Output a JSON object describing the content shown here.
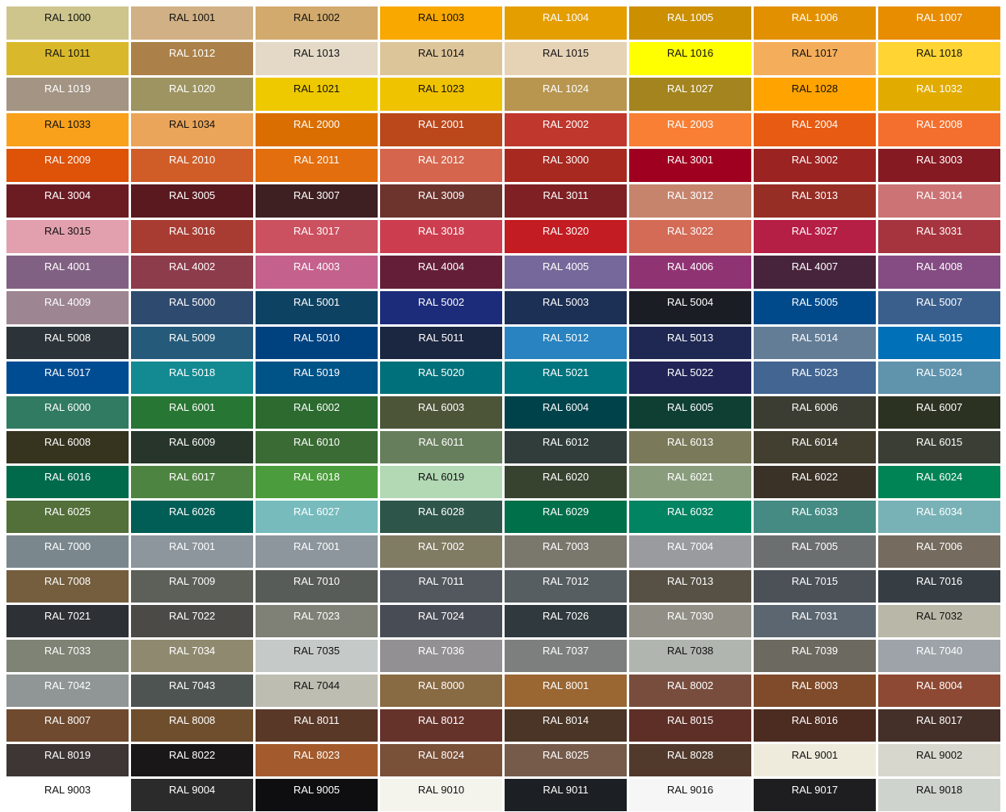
{
  "rows": [
    [
      {
        "label": "RAL 1000",
        "color": "#CDC58C",
        "text_color": "#111"
      },
      {
        "label": "RAL 1001",
        "color": "#D0B084",
        "text_color": "#111"
      },
      {
        "label": "RAL 1002",
        "color": "#D2AA6D",
        "text_color": "#111"
      },
      {
        "label": "RAL 1003",
        "color": "#F9A800",
        "text_color": "#111"
      },
      {
        "label": "RAL 1004",
        "color": "#E49E00",
        "text_color": "#fff"
      },
      {
        "label": "RAL 1005",
        "color": "#CB8F00",
        "text_color": "#fff"
      },
      {
        "label": "RAL 1006",
        "color": "#E29000",
        "text_color": "#fff"
      },
      {
        "label": "RAL 1007",
        "color": "#E88C00",
        "text_color": "#fff"
      }
    ],
    [
      {
        "label": "RAL 1011",
        "color": "#D9B92B",
        "text_color": "#111"
      },
      {
        "label": "RAL 1012",
        "color": "#AB8149",
        "text_color": "#fff"
      },
      {
        "label": "RAL 1013",
        "color": "#E3D9C6",
        "text_color": "#111"
      },
      {
        "label": "RAL 1014",
        "color": "#DDC59A",
        "text_color": "#111"
      },
      {
        "label": "RAL 1015",
        "color": "#E6D2B5",
        "text_color": "#111"
      },
      {
        "label": "RAL 1016",
        "color": "#FFFF00",
        "text_color": "#111"
      },
      {
        "label": "RAL 1017",
        "color": "#F4AE5B",
        "text_color": "#111"
      },
      {
        "label": "RAL 1018",
        "color": "#FFD433",
        "text_color": "#111"
      }
    ],
    [
      {
        "label": "RAL 1019",
        "color": "#A39483",
        "text_color": "#fff"
      },
      {
        "label": "RAL 1020",
        "color": "#9D9461",
        "text_color": "#fff"
      },
      {
        "label": "RAL 1021",
        "color": "#EEC900",
        "text_color": "#111"
      },
      {
        "label": "RAL 1023",
        "color": "#F0C300",
        "text_color": "#111"
      },
      {
        "label": "RAL 1024",
        "color": "#B89650",
        "text_color": "#fff"
      },
      {
        "label": "RAL 1027",
        "color": "#A4841F",
        "text_color": "#fff"
      },
      {
        "label": "RAL 1028",
        "color": "#FFA300",
        "text_color": "#111"
      },
      {
        "label": "RAL 1032",
        "color": "#E2AB00",
        "text_color": "#fff"
      }
    ],
    [
      {
        "label": "RAL 1033",
        "color": "#F9A11B",
        "text_color": "#111"
      },
      {
        "label": "RAL 1034",
        "color": "#EBA55A",
        "text_color": "#111"
      },
      {
        "label": "RAL 2000",
        "color": "#DA6E00",
        "text_color": "#fff"
      },
      {
        "label": "RAL 2001",
        "color": "#BA481B",
        "text_color": "#fff"
      },
      {
        "label": "RAL 2002",
        "color": "#C0372E",
        "text_color": "#fff"
      },
      {
        "label": "RAL 2003",
        "color": "#F87F33",
        "text_color": "#fff"
      },
      {
        "label": "RAL 2004",
        "color": "#E75B12",
        "text_color": "#fff"
      },
      {
        "label": "RAL 2008",
        "color": "#F46F2D",
        "text_color": "#fff"
      }
    ],
    [
      {
        "label": "RAL 2009",
        "color": "#DE5307",
        "text_color": "#fff"
      },
      {
        "label": "RAL 2010",
        "color": "#D05D28",
        "text_color": "#fff"
      },
      {
        "label": "RAL 2011",
        "color": "#E26E0E",
        "text_color": "#fff"
      },
      {
        "label": "RAL 2012",
        "color": "#D5654D",
        "text_color": "#fff"
      },
      {
        "label": "RAL 3000",
        "color": "#A72920",
        "text_color": "#fff"
      },
      {
        "label": "RAL 3001",
        "color": "#A00020",
        "text_color": "#fff"
      },
      {
        "label": "RAL 3002",
        "color": "#9B2322",
        "text_color": "#fff"
      },
      {
        "label": "RAL 3003",
        "color": "#861A22",
        "text_color": "#fff"
      }
    ],
    [
      {
        "label": "RAL 3004",
        "color": "#6B1C23",
        "text_color": "#fff"
      },
      {
        "label": "RAL 3005",
        "color": "#59191F",
        "text_color": "#fff"
      },
      {
        "label": "RAL 3007",
        "color": "#3E2022",
        "text_color": "#fff"
      },
      {
        "label": "RAL 3009",
        "color": "#6D342D",
        "text_color": "#fff"
      },
      {
        "label": "RAL 3011",
        "color": "#7E2024",
        "text_color": "#fff"
      },
      {
        "label": "RAL 3012",
        "color": "#C6846D",
        "text_color": "#fff"
      },
      {
        "label": "RAL 3013",
        "color": "#972E25",
        "text_color": "#fff"
      },
      {
        "label": "RAL 3014",
        "color": "#CB7375",
        "text_color": "#fff"
      }
    ],
    [
      {
        "label": "RAL 3015",
        "color": "#E29FAE",
        "text_color": "#111"
      },
      {
        "label": "RAL 3016",
        "color": "#A83C32",
        "text_color": "#fff"
      },
      {
        "label": "RAL 3017",
        "color": "#CB5160",
        "text_color": "#fff"
      },
      {
        "label": "RAL 3018",
        "color": "#CC3E4F",
        "text_color": "#fff"
      },
      {
        "label": "RAL 3020",
        "color": "#C31C22",
        "text_color": "#fff"
      },
      {
        "label": "RAL 3022",
        "color": "#D36B56",
        "text_color": "#fff"
      },
      {
        "label": "RAL 3027",
        "color": "#B51E45",
        "text_color": "#fff"
      },
      {
        "label": "RAL 3031",
        "color": "#A6343E",
        "text_color": "#fff"
      }
    ],
    [
      {
        "label": "RAL 4001",
        "color": "#816183",
        "text_color": "#fff"
      },
      {
        "label": "RAL 4002",
        "color": "#8D3C4B",
        "text_color": "#fff"
      },
      {
        "label": "RAL 4003",
        "color": "#C4618C",
        "text_color": "#fff"
      },
      {
        "label": "RAL 4004",
        "color": "#651E38",
        "text_color": "#fff"
      },
      {
        "label": "RAL 4005",
        "color": "#76689A",
        "text_color": "#fff"
      },
      {
        "label": "RAL 4006",
        "color": "#903373",
        "text_color": "#fff"
      },
      {
        "label": "RAL 4007",
        "color": "#47243C",
        "text_color": "#fff"
      },
      {
        "label": "RAL 4008",
        "color": "#844C82",
        "text_color": "#fff"
      }
    ],
    [
      {
        "label": "RAL 4009",
        "color": "#9D8692",
        "text_color": "#fff"
      },
      {
        "label": "RAL 5000",
        "color": "#2F4A6F",
        "text_color": "#fff"
      },
      {
        "label": "RAL 5001",
        "color": "#0E4263",
        "text_color": "#fff"
      },
      {
        "label": "RAL 5002",
        "color": "#1C2B7A",
        "text_color": "#fff"
      },
      {
        "label": "RAL 5003",
        "color": "#1C2F55",
        "text_color": "#fff"
      },
      {
        "label": "RAL 5004",
        "color": "#1A1D24",
        "text_color": "#fff"
      },
      {
        "label": "RAL 5005",
        "color": "#004A8C",
        "text_color": "#fff"
      },
      {
        "label": "RAL 5007",
        "color": "#3B5F8D",
        "text_color": "#fff"
      }
    ],
    [
      {
        "label": "RAL 5008",
        "color": "#2C3439",
        "text_color": "#fff"
      },
      {
        "label": "RAL 5009",
        "color": "#255A7A",
        "text_color": "#fff"
      },
      {
        "label": "RAL 5010",
        "color": "#00427F",
        "text_color": "#fff"
      },
      {
        "label": "RAL 5011",
        "color": "#1B2640",
        "text_color": "#fff"
      },
      {
        "label": "RAL 5012",
        "color": "#2883C0",
        "text_color": "#fff"
      },
      {
        "label": "RAL 5013",
        "color": "#1E2852",
        "text_color": "#fff"
      },
      {
        "label": "RAL 5014",
        "color": "#637D96",
        "text_color": "#fff"
      },
      {
        "label": "RAL 5015",
        "color": "#0070B8",
        "text_color": "#fff"
      }
    ],
    [
      {
        "label": "RAL 5017",
        "color": "#004C93",
        "text_color": "#fff"
      },
      {
        "label": "RAL 5018",
        "color": "#138992",
        "text_color": "#fff"
      },
      {
        "label": "RAL 5019",
        "color": "#005387",
        "text_color": "#fff"
      },
      {
        "label": "RAL 5020",
        "color": "#00707A",
        "text_color": "#fff"
      },
      {
        "label": "RAL 5021",
        "color": "#00757F",
        "text_color": "#fff"
      },
      {
        "label": "RAL 5022",
        "color": "#222457",
        "text_color": "#fff"
      },
      {
        "label": "RAL 5023",
        "color": "#426592",
        "text_color": "#fff"
      },
      {
        "label": "RAL 5024",
        "color": "#6093AC",
        "text_color": "#fff"
      }
    ],
    [
      {
        "label": "RAL 6000",
        "color": "#317B63",
        "text_color": "#fff"
      },
      {
        "label": "RAL 6001",
        "color": "#287633",
        "text_color": "#fff"
      },
      {
        "label": "RAL 6002",
        "color": "#2C6A30",
        "text_color": "#fff"
      },
      {
        "label": "RAL 6003",
        "color": "#4D5539",
        "text_color": "#fff"
      },
      {
        "label": "RAL 6004",
        "color": "#00424A",
        "text_color": "#fff"
      },
      {
        "label": "RAL 6005",
        "color": "#0F3F33",
        "text_color": "#fff"
      },
      {
        "label": "RAL 6006",
        "color": "#3C3D32",
        "text_color": "#fff"
      },
      {
        "label": "RAL 6007",
        "color": "#2C3222",
        "text_color": "#fff"
      }
    ],
    [
      {
        "label": "RAL 6008",
        "color": "#36341F",
        "text_color": "#fff"
      },
      {
        "label": "RAL 6009",
        "color": "#27352A",
        "text_color": "#fff"
      },
      {
        "label": "RAL 6010",
        "color": "#3A6B34",
        "text_color": "#fff"
      },
      {
        "label": "RAL 6011",
        "color": "#677E5D",
        "text_color": "#fff"
      },
      {
        "label": "RAL 6012",
        "color": "#303D3A",
        "text_color": "#fff"
      },
      {
        "label": "RAL 6013",
        "color": "#7A7A5A",
        "text_color": "#fff"
      },
      {
        "label": "RAL 6014",
        "color": "#423F31",
        "text_color": "#fff"
      },
      {
        "label": "RAL 6015",
        "color": "#3B3E35",
        "text_color": "#fff"
      }
    ],
    [
      {
        "label": "RAL 6016",
        "color": "#006A4B",
        "text_color": "#fff"
      },
      {
        "label": "RAL 6017",
        "color": "#4E8441",
        "text_color": "#fff"
      },
      {
        "label": "RAL 6018",
        "color": "#4B9C3C",
        "text_color": "#fff"
      },
      {
        "label": "RAL 6019",
        "color": "#B2D8B4",
        "text_color": "#111"
      },
      {
        "label": "RAL 6020",
        "color": "#37422F",
        "text_color": "#fff"
      },
      {
        "label": "RAL 6021",
        "color": "#899C7C",
        "text_color": "#fff"
      },
      {
        "label": "RAL 6022",
        "color": "#3A3127",
        "text_color": "#fff"
      },
      {
        "label": "RAL 6024",
        "color": "#008455",
        "text_color": "#fff"
      }
    ],
    [
      {
        "label": "RAL 6025",
        "color": "#53703A",
        "text_color": "#fff"
      },
      {
        "label": "RAL 6026",
        "color": "#005E56",
        "text_color": "#fff"
      },
      {
        "label": "RAL 6027",
        "color": "#77BBBD",
        "text_color": "#fff"
      },
      {
        "label": "RAL 6028",
        "color": "#2E554A",
        "text_color": "#fff"
      },
      {
        "label": "RAL 6029",
        "color": "#00704A",
        "text_color": "#fff"
      },
      {
        "label": "RAL 6032",
        "color": "#008462",
        "text_color": "#fff"
      },
      {
        "label": "RAL 6033",
        "color": "#458B84",
        "text_color": "#fff"
      },
      {
        "label": "RAL 6034",
        "color": "#79B2B6",
        "text_color": "#fff"
      }
    ],
    [
      {
        "label": "RAL 7000",
        "color": "#7A888E",
        "text_color": "#fff"
      },
      {
        "label": "RAL 7001",
        "color": "#8C969C",
        "text_color": "#fff"
      },
      {
        "label": "RAL 7001",
        "color": "#8C969C",
        "text_color": "#fff"
      },
      {
        "label": "RAL 7002",
        "color": "#807B63",
        "text_color": "#fff"
      },
      {
        "label": "RAL 7003",
        "color": "#7A786D",
        "text_color": "#fff"
      },
      {
        "label": "RAL 7004",
        "color": "#9A9B9F",
        "text_color": "#fff"
      },
      {
        "label": "RAL 7005",
        "color": "#6C6F70",
        "text_color": "#fff"
      },
      {
        "label": "RAL 7006",
        "color": "#756B5E",
        "text_color": "#fff"
      }
    ],
    [
      {
        "label": "RAL 7008",
        "color": "#745E3D",
        "text_color": "#fff"
      },
      {
        "label": "RAL 7009",
        "color": "#5C6058",
        "text_color": "#fff"
      },
      {
        "label": "RAL 7010",
        "color": "#575C58",
        "text_color": "#fff"
      },
      {
        "label": "RAL 7011",
        "color": "#52585D",
        "text_color": "#fff"
      },
      {
        "label": "RAL 7012",
        "color": "#575E61",
        "text_color": "#fff"
      },
      {
        "label": "RAL 7013",
        "color": "#575145",
        "text_color": "#fff"
      },
      {
        "label": "RAL 7015",
        "color": "#4C5158",
        "text_color": "#fff"
      },
      {
        "label": "RAL 7016",
        "color": "#363D43",
        "text_color": "#fff"
      }
    ],
    [
      {
        "label": "RAL 7021",
        "color": "#2D3034",
        "text_color": "#fff"
      },
      {
        "label": "RAL 7022",
        "color": "#4B4A47",
        "text_color": "#fff"
      },
      {
        "label": "RAL 7023",
        "color": "#7F8176",
        "text_color": "#fff"
      },
      {
        "label": "RAL 7024",
        "color": "#484C55",
        "text_color": "#fff"
      },
      {
        "label": "RAL 7026",
        "color": "#30393D",
        "text_color": "#fff"
      },
      {
        "label": "RAL 7030",
        "color": "#908E85",
        "text_color": "#fff"
      },
      {
        "label": "RAL 7031",
        "color": "#5B6670",
        "text_color": "#fff"
      },
      {
        "label": "RAL 7032",
        "color": "#B9B8A8",
        "text_color": "#111"
      }
    ],
    [
      {
        "label": "RAL 7033",
        "color": "#7E8375",
        "text_color": "#fff"
      },
      {
        "label": "RAL 7034",
        "color": "#8F8A6F",
        "text_color": "#fff"
      },
      {
        "label": "RAL 7035",
        "color": "#C5CAC9",
        "text_color": "#111"
      },
      {
        "label": "RAL 7036",
        "color": "#929092",
        "text_color": "#fff"
      },
      {
        "label": "RAL 7037",
        "color": "#7D7F7F",
        "text_color": "#fff"
      },
      {
        "label": "RAL 7038",
        "color": "#B1B5B0",
        "text_color": "#111"
      },
      {
        "label": "RAL 7039",
        "color": "#6C6960",
        "text_color": "#fff"
      },
      {
        "label": "RAL 7040",
        "color": "#9DA3A9",
        "text_color": "#fff"
      }
    ],
    [
      {
        "label": "RAL 7042",
        "color": "#8F9695",
        "text_color": "#fff"
      },
      {
        "label": "RAL 7043",
        "color": "#4E5452",
        "text_color": "#fff"
      },
      {
        "label": "RAL 7044",
        "color": "#BDBDB1",
        "text_color": "#111"
      },
      {
        "label": "RAL 8000",
        "color": "#886A43",
        "text_color": "#fff"
      },
      {
        "label": "RAL 8001",
        "color": "#9A6632",
        "text_color": "#fff"
      },
      {
        "label": "RAL 8002",
        "color": "#794D3E",
        "text_color": "#fff"
      },
      {
        "label": "RAL 8003",
        "color": "#7F4B2A",
        "text_color": "#fff"
      },
      {
        "label": "RAL 8004",
        "color": "#8D4933",
        "text_color": "#fff"
      }
    ],
    [
      {
        "label": "RAL 8007",
        "color": "#6F4A2F",
        "text_color": "#fff"
      },
      {
        "label": "RAL 8008",
        "color": "#6F4E2D",
        "text_color": "#fff"
      },
      {
        "label": "RAL 8011",
        "color": "#5A3827",
        "text_color": "#fff"
      },
      {
        "label": "RAL 8012",
        "color": "#66332B",
        "text_color": "#fff"
      },
      {
        "label": "RAL 8014",
        "color": "#4A3526",
        "text_color": "#fff"
      },
      {
        "label": "RAL 8015",
        "color": "#5E2F26",
        "text_color": "#fff"
      },
      {
        "label": "RAL 8016",
        "color": "#4C2B20",
        "text_color": "#fff"
      },
      {
        "label": "RAL 8017",
        "color": "#442F29",
        "text_color": "#fff"
      }
    ],
    [
      {
        "label": "RAL 8019",
        "color": "#3D3635",
        "text_color": "#fff"
      },
      {
        "label": "RAL 8022",
        "color": "#1A1718",
        "text_color": "#fff"
      },
      {
        "label": "RAL 8023",
        "color": "#A35B2D",
        "text_color": "#fff"
      },
      {
        "label": "RAL 8024",
        "color": "#795038",
        "text_color": "#fff"
      },
      {
        "label": "RAL 8025",
        "color": "#765B4B",
        "text_color": "#fff"
      },
      {
        "label": "RAL 8028",
        "color": "#513A2B",
        "text_color": "#fff"
      },
      {
        "label": "RAL 9001",
        "color": "#EFEBDC",
        "text_color": "#111"
      },
      {
        "label": "RAL 9002",
        "color": "#D7D7CE",
        "text_color": "#111"
      }
    ],
    [
      {
        "label": "RAL 9003",
        "color": "#FFFFFF",
        "text_color": "#111"
      },
      {
        "label": "RAL 9004",
        "color": "#2B2B2C",
        "text_color": "#fff"
      },
      {
        "label": "RAL 9005",
        "color": "#0E0E10",
        "text_color": "#fff"
      },
      {
        "label": "RAL 9010",
        "color": "#F4F4ED",
        "text_color": "#111"
      },
      {
        "label": "RAL 9011",
        "color": "#1C1F23",
        "text_color": "#fff"
      },
      {
        "label": "RAL 9016",
        "color": "#F6F6F6",
        "text_color": "#111"
      },
      {
        "label": "RAL 9017",
        "color": "#1E1E20",
        "text_color": "#fff"
      },
      {
        "label": "RAL 9018",
        "color": "#CFD3CD",
        "text_color": "#111"
      }
    ]
  ]
}
